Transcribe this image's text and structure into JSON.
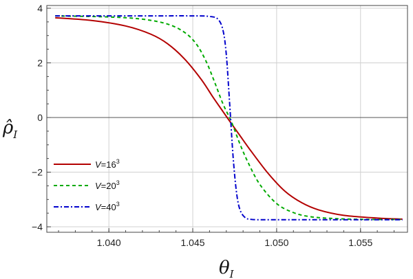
{
  "chart_data": {
    "type": "line",
    "xlabel_main": "θ",
    "xlabel_sub": "I",
    "ylabel_main": "ρ̂",
    "ylabel_sub": "I",
    "xlim": [
      1.0363,
      1.0578
    ],
    "ylim": [
      -4.2,
      4.1
    ],
    "xticks": [
      1.04,
      1.045,
      1.05,
      1.055
    ],
    "xtick_labels": [
      "1.040",
      "1.045",
      "1.050",
      "1.055"
    ],
    "yticks": [
      -4,
      -2,
      0,
      2,
      4
    ],
    "ytick_labels": [
      "−4",
      "−2",
      "0",
      "2",
      "4"
    ],
    "grid": true,
    "legend_position": "lower-left",
    "series": [
      {
        "name": "V=16³",
        "name_var": "V",
        "name_eq": "=16",
        "name_exp": "3",
        "color": "#b30000",
        "dash": "solid",
        "x": [
          1.0368,
          1.039,
          1.041,
          1.0425,
          1.0435,
          1.0445,
          1.0455,
          1.0462,
          1.0468,
          1.0473,
          1.0478,
          1.0485,
          1.0495,
          1.0505,
          1.0515,
          1.0525,
          1.054,
          1.056,
          1.0575
        ],
        "y": [
          3.65,
          3.55,
          3.35,
          3.05,
          2.7,
          2.15,
          1.4,
          0.75,
          0.22,
          -0.22,
          -0.65,
          -1.25,
          -2.05,
          -2.7,
          -3.12,
          -3.38,
          -3.58,
          -3.68,
          -3.72
        ]
      },
      {
        "name": "V=20³",
        "name_var": "V",
        "name_eq": "=20",
        "name_exp": "3",
        "color": "#00aa00",
        "dash": "5,4",
        "x": [
          1.0368,
          1.04,
          1.042,
          1.0435,
          1.0445,
          1.0452,
          1.0458,
          1.0463,
          1.0468,
          1.0473,
          1.0478,
          1.0483,
          1.049,
          1.05,
          1.051,
          1.052,
          1.0535,
          1.0555,
          1.0575
        ],
        "y": [
          3.72,
          3.68,
          3.6,
          3.42,
          3.12,
          2.7,
          2.05,
          1.3,
          0.5,
          -0.15,
          -0.95,
          -1.65,
          -2.45,
          -3.15,
          -3.48,
          -3.63,
          -3.7,
          -3.73,
          -3.73
        ]
      },
      {
        "name": "V=40³",
        "name_var": "V",
        "name_eq": "=40",
        "name_exp": "3",
        "color": "#0000cc",
        "dash": "7,3,2,3",
        "x": [
          1.0368,
          1.042,
          1.045,
          1.046,
          1.0465,
          1.0468,
          1.047,
          1.0472,
          1.0474,
          1.0476,
          1.0478,
          1.0481,
          1.0485,
          1.0495,
          1.052,
          1.0575
        ],
        "y": [
          3.72,
          3.72,
          3.72,
          3.7,
          3.6,
          3.2,
          2.3,
          0.5,
          -1.4,
          -2.7,
          -3.35,
          -3.65,
          -3.73,
          -3.74,
          -3.74,
          -3.74
        ]
      }
    ]
  }
}
